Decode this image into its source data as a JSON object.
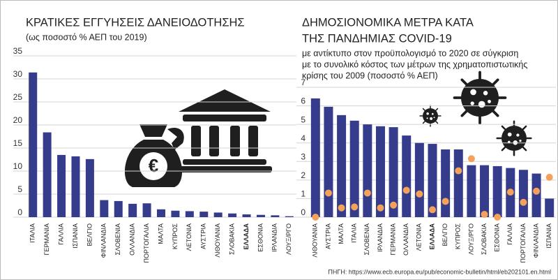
{
  "chart_data": [
    {
      "type": "bar",
      "title": [
        "ΚΡΑΤΙΚΕΣ ΕΓΓΥΗΣΕΙΣ ΔΑΝΕΙΟΔΟΤΗΣΗΣ"
      ],
      "subtitle": [
        "(ως ποσοστό % ΑΕΠ του 2019)"
      ],
      "categories": [
        "ΙΤΑΛΙΑ",
        "ΓΕΡΜΑΝΙΑ",
        "ΓΑΛΛΙΑ",
        "ΙΣΠΑΝΙΑ",
        "ΒΕΛΓΙΟ",
        "ΦΙΝΛΑΝΔΙΑ",
        "ΣΛΟΒΕΝΙΑ",
        "ΟΛΛΑΝΔΙΑ",
        "ΠΟΡΤΟΓΑΛΙΑ",
        "ΜΑΛΤΑ",
        "ΚΥΠΡΟΣ",
        "ΛΕΤΟΝΙΑ",
        "ΑΥΣΤΡΙΑ",
        "ΛΙΘΟΥΑΝΙΑ",
        "ΣΛΟΒΑΚΙΑ",
        "ΕΛΛΑΔΑ",
        "ΕΣΘΟΝΙΑ",
        "ΙΡΛΑΝΔΙΑ",
        "ΛΟΥΞ/ΡΓΟ"
      ],
      "series": [
        {
          "type": "bar",
          "color": "#363c8c",
          "values": [
            31.4,
            18.4,
            13.5,
            13.2,
            12.6,
            3.7,
            3.5,
            2.9,
            3.0,
            1.7,
            1.4,
            1.3,
            1.2,
            1.0,
            0.8,
            0.6,
            0.5,
            0.4,
            0.2
          ]
        }
      ],
      "ylim": [
        0,
        35
      ],
      "yticks": [
        0,
        5,
        10,
        15,
        20,
        25,
        30,
        35
      ],
      "grid": true
    },
    {
      "type": "bar",
      "title": [
        "ΔΗΜΟΣΙΟΝΟΜΙΚΑ ΜΕΤΡΑ ΚΑΤΑ",
        "ΤΗΣ ΠΑΝΔΗΜΙΑΣ COVID-19"
      ],
      "subtitle": [
        "με αντίκτυπο στον προϋπολογισμό το 2020 σε σύγκριση",
        "με το συνολικό κόστος των μέτρων της χρηματοπιστωτικής",
        "κρίσης του 2009 (ποσοστό % ΑΕΠ)"
      ],
      "categories": [
        "ΛΙΘΟΥΑΝΙΑ",
        "ΑΥΣΤΡΙΑ",
        "ΜΑΛΤΑ",
        "ΙΤΑΛΙΑ",
        "ΣΛΟΒΕΝΙΑ",
        "ΙΡΛΑΝΔΙΑ",
        "ΓΕΡΜΑΝΙΑ",
        "ΟΛΛΑΝΔΙΑ",
        "ΛΕΤΟΝΙΑ",
        "ΕΛΛΑΔΑ",
        "ΒΕΛΓΙΟ",
        "ΚΥΠΡΟΣ",
        "ΛΟΥΞ/ΡΓΟ",
        "ΣΛΟΒΑΚΙΑ",
        "ΕΣΘΟΝΙΑ",
        "ΓΑΛΛΙΑ",
        "ΠΟΡΤΟΓΑΛΙΑ",
        "ΦΙΝΛΑΝΔΙΑ",
        "ΙΣΠΑΝΙΑ"
      ],
      "series": [
        {
          "type": "bar",
          "color": "#363c8c",
          "values": [
            6.4,
            5.95,
            5.5,
            5.2,
            5.0,
            4.9,
            4.85,
            4.4,
            4.0,
            3.95,
            3.65,
            3.65,
            2.8,
            2.8,
            2.75,
            2.65,
            2.55,
            2.35,
            1.0
          ]
        },
        {
          "type": "dot",
          "color": "#f4a25a",
          "values": [
            0.0,
            1.3,
            0.5,
            0.55,
            1.3,
            0.5,
            0.65,
            1.45,
            1.25,
            0.4,
            0.85,
            2.5,
            3.15,
            0.15,
            0.0,
            1.35,
            0.8,
            1.4,
            2.15
          ]
        }
      ],
      "ylim": [
        0,
        7
      ],
      "yticks": [
        0,
        1,
        2,
        3,
        4,
        5,
        6,
        7
      ],
      "grid": true
    }
  ],
  "source": "ΠΗΓΗ: https://www.ecb.europa.eu/pub/economic-bulletin/html/eb202101.en.html"
}
